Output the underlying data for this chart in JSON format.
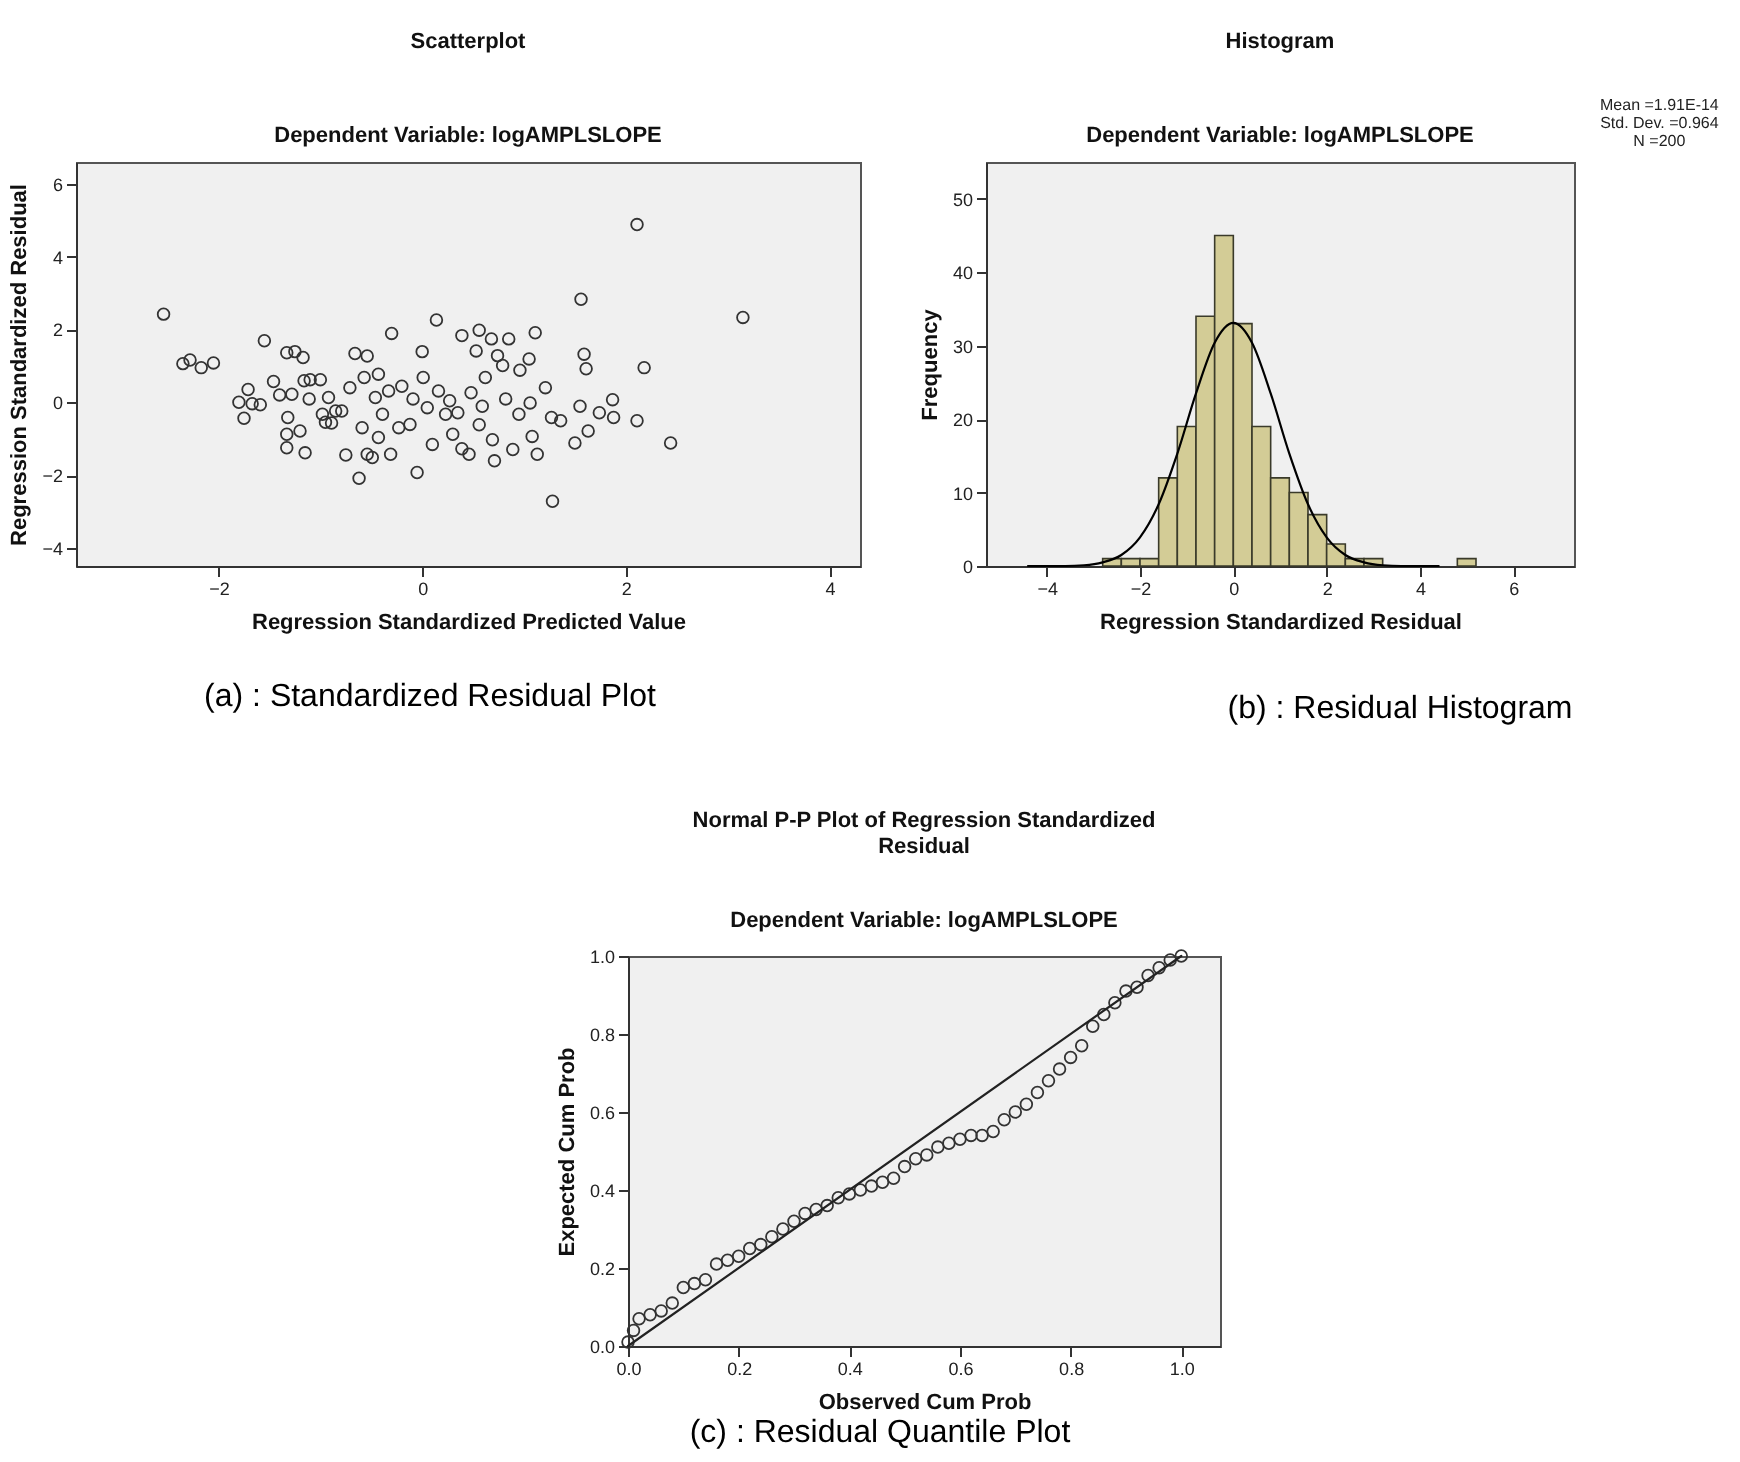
{
  "chart_data": [
    {
      "type": "scatter",
      "title": "Scatterplot",
      "subtitle": "Dependent Variable: logAMPLSLOPE",
      "xlabel": "Regression Standardized Predicted Value",
      "ylabel": "Regression Standardized Residual",
      "xlim": [
        -3.4,
        4.3
      ],
      "ylim": [
        -4.5,
        6.6
      ],
      "xticks": [
        -2,
        0,
        2,
        4
      ],
      "yticks": [
        -4,
        -2,
        0,
        2,
        4,
        6
      ],
      "grid": false,
      "marker": "circle",
      "color": "#333333",
      "x": [
        -2.54,
        -2.35,
        -2.28,
        -2.17,
        -2.05,
        -1.8,
        -1.75,
        -1.71,
        -1.67,
        -1.59,
        -1.55,
        -1.46,
        -1.4,
        -1.33,
        -1.25,
        -1.17,
        -1.33,
        -1.33,
        -1.32,
        -1.28,
        -1.2,
        -1.15,
        -1.16,
        -1.1,
        -1.11,
        -1.0,
        -0.98,
        -0.95,
        -0.92,
        -0.89,
        -0.85,
        -0.79,
        -0.75,
        -0.71,
        -0.66,
        -0.62,
        -0.59,
        -0.57,
        -0.54,
        -0.54,
        -0.49,
        -0.46,
        -0.43,
        -0.43,
        -0.39,
        -0.33,
        -0.3,
        -0.31,
        -0.23,
        -0.2,
        -0.12,
        -0.09,
        -0.05,
        0.0,
        0.01,
        0.05,
        0.1,
        0.14,
        0.16,
        0.23,
        0.3,
        0.39,
        0.39,
        0.46,
        0.48,
        0.53,
        0.56,
        0.59,
        0.62,
        0.68,
        0.71,
        0.74,
        0.79,
        0.85,
        0.89,
        0.95,
        0.96,
        1.05,
        1.06,
        1.08,
        1.11,
        1.13,
        1.21,
        1.27,
        1.28,
        1.36,
        1.5,
        1.55,
        1.56,
        1.59,
        1.61,
        1.63,
        1.74,
        1.87,
        1.88,
        2.11,
        2.11,
        2.18,
        2.44,
        3.15,
        0.35,
        0.27,
        0.56,
        0.69,
        0.82
      ],
      "values": [
        2.42,
        1.06,
        1.16,
        0.95,
        1.08,
        0.0,
        -0.44,
        0.35,
        -0.04,
        -0.07,
        1.69,
        0.57,
        0.2,
        1.36,
        1.39,
        1.23,
        -1.25,
        -0.88,
        -0.42,
        0.22,
        -0.79,
        -1.39,
        0.59,
        0.62,
        0.09,
        0.62,
        -0.33,
        -0.55,
        0.13,
        -0.57,
        -0.24,
        -0.24,
        -1.45,
        0.4,
        1.34,
        -2.09,
        -0.7,
        0.68,
        1.27,
        -1.43,
        -1.52,
        0.13,
        0.77,
        -0.97,
        -0.33,
        0.31,
        1.89,
        -1.43,
        -0.7,
        0.44,
        -0.61,
        0.09,
        -1.93,
        1.39,
        0.68,
        -0.15,
        -1.16,
        2.26,
        0.31,
        -0.33,
        -0.88,
        1.83,
        -1.28,
        -1.43,
        0.26,
        1.41,
        1.98,
        -0.11,
        0.68,
        1.74,
        -1.61,
        1.28,
        1.01,
        1.74,
        -1.3,
        -0.33,
        0.88,
        1.19,
        -0.02,
        -0.94,
        1.91,
        -1.43,
        0.4,
        -0.42,
        -2.72,
        -0.51,
        -1.12,
        -0.11,
        2.83,
        1.32,
        0.92,
        -0.79,
        -0.29,
        0.07,
        -0.42,
        4.88,
        -0.51,
        0.95,
        -1.12,
        2.33,
        -0.29,
        0.04,
        -0.62,
        -1.03,
        0.09
      ],
      "annotations": [
        "(a) : Standardized Residual Plot"
      ]
    },
    {
      "type": "histogram",
      "title": "Histogram",
      "subtitle": "Dependent Variable: logAMPLSLOPE",
      "xlabel": "Regression Standardized Residual",
      "ylabel": "Frequency",
      "xlim": [
        -5.3,
        7.3
      ],
      "ylim": [
        0,
        55
      ],
      "xticks": [
        -4,
        -2,
        0,
        2,
        4,
        6
      ],
      "yticks": [
        0,
        10,
        20,
        30,
        40,
        50
      ],
      "grid": false,
      "color": "#d3cc96",
      "bins": [
        -2.8,
        -2.4,
        -2.0,
        -1.6,
        -1.2,
        -0.8,
        -0.4,
        0,
        0.4,
        0.8,
        1.2,
        1.6,
        2.0,
        2.4,
        2.8,
        3.2,
        3.6,
        4.0,
        4.4,
        4.8,
        5.2
      ],
      "values": [
        1,
        1,
        1,
        12,
        19,
        34,
        45,
        33,
        19,
        12,
        10,
        7,
        3,
        1,
        1,
        0,
        0,
        0,
        0,
        1
      ],
      "series": [
        {
          "type": "line",
          "color": "#000000",
          "x": [
            -4.4,
            -4.0,
            -3.6,
            -3.2,
            -2.8,
            -2.4,
            -2.0,
            -1.6,
            -1.2,
            -0.8,
            -0.4,
            0,
            0.4,
            0.8,
            1.2,
            1.6,
            2.0,
            2.4,
            2.8,
            3.2,
            3.6,
            4.0,
            4.4
          ],
          "values": [
            0,
            0,
            0,
            0.1,
            0.5,
            1.5,
            3.9,
            8.4,
            15.3,
            23.5,
            30.4,
            33.1,
            30.4,
            23.5,
            15.3,
            8.4,
            3.9,
            1.5,
            0.5,
            0.1,
            0,
            0,
            0
          ]
        }
      ],
      "annotations": [
        "Mean =1.91E-14",
        "Std. Dev. =0.964",
        "N =200",
        "(b) : Residual Histogram"
      ]
    },
    {
      "type": "scatter",
      "title": "Normal P-P Plot of Regression Standardized Residual",
      "subtitle": "Dependent Variable: logAMPLSLOPE",
      "xlabel": "Observed Cum Prob",
      "ylabel": "Expected Cum Prob",
      "xlim": [
        0,
        1.07
      ],
      "ylim": [
        0,
        1
      ],
      "xticks": [
        {
          "value": 0,
          "label": "0.0"
        },
        0.2,
        0.4,
        0.6,
        0.8,
        {
          "value": 1,
          "label": "1.0"
        }
      ],
      "yticks": [
        {
          "value": 0,
          "label": "0.0"
        },
        0.2,
        0.4,
        0.6,
        0.8,
        {
          "value": 1,
          "label": "1.0"
        }
      ],
      "grid": false,
      "series": [
        {
          "type": "scatter",
          "marker": "circle",
          "color": "#333333",
          "x": [
            0.0,
            0.01,
            0.02,
            0.04,
            0.06,
            0.08,
            0.1,
            0.12,
            0.14,
            0.16,
            0.18,
            0.2,
            0.22,
            0.24,
            0.26,
            0.28,
            0.3,
            0.32,
            0.34,
            0.36,
            0.38,
            0.4,
            0.42,
            0.44,
            0.46,
            0.48,
            0.5,
            0.52,
            0.54,
            0.56,
            0.58,
            0.6,
            0.62,
            0.64,
            0.66,
            0.68,
            0.7,
            0.72,
            0.74,
            0.76,
            0.78,
            0.8,
            0.82,
            0.84,
            0.86,
            0.88,
            0.9,
            0.92,
            0.94,
            0.96,
            0.98,
            1.0
          ],
          "values": [
            0.01,
            0.04,
            0.07,
            0.08,
            0.09,
            0.11,
            0.15,
            0.16,
            0.17,
            0.21,
            0.22,
            0.23,
            0.25,
            0.26,
            0.28,
            0.3,
            0.32,
            0.34,
            0.35,
            0.36,
            0.38,
            0.39,
            0.4,
            0.41,
            0.42,
            0.43,
            0.46,
            0.48,
            0.49,
            0.51,
            0.52,
            0.53,
            0.54,
            0.54,
            0.55,
            0.58,
            0.6,
            0.62,
            0.65,
            0.68,
            0.71,
            0.74,
            0.77,
            0.82,
            0.85,
            0.88,
            0.91,
            0.92,
            0.95,
            0.97,
            0.99,
            1.0
          ]
        },
        {
          "type": "line",
          "color": "#222222",
          "x": [
            0,
            1
          ],
          "values": [
            0,
            1
          ]
        }
      ],
      "annotations": [
        "(c) : Residual Quantile Plot"
      ]
    }
  ]
}
